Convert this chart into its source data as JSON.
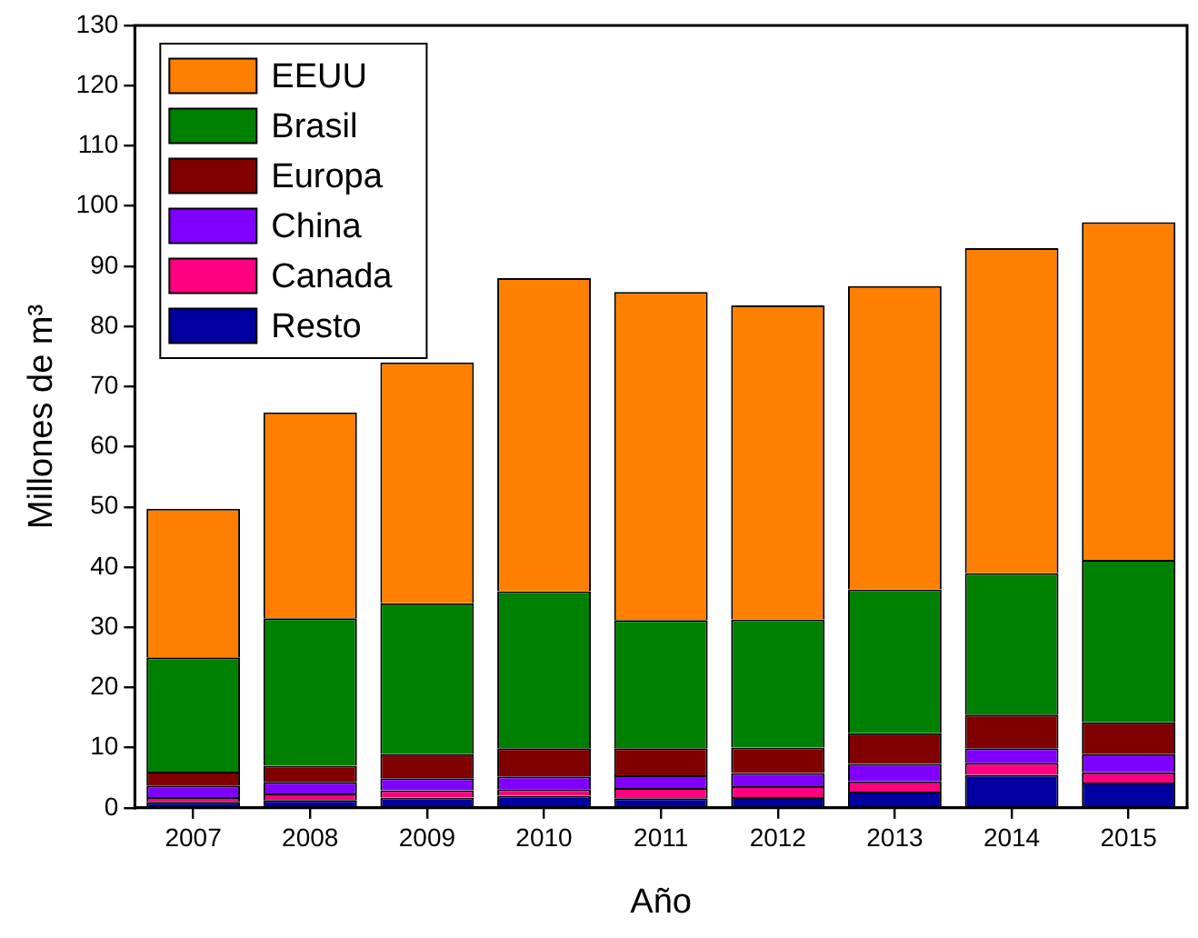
{
  "chart_data": {
    "type": "bar",
    "stacked": true,
    "xlabel": "Año",
    "ylabel": "Millones de m³",
    "categories": [
      "2007",
      "2008",
      "2009",
      "2010",
      "2011",
      "2012",
      "2013",
      "2014",
      "2015"
    ],
    "series": [
      {
        "name": "Resto",
        "color": "#0000a0",
        "values": [
          1.0,
          1.3,
          1.7,
          2.0,
          1.6,
          1.8,
          2.7,
          5.5,
          4.2
        ]
      },
      {
        "name": "Canada",
        "color": "#ff0080",
        "values": [
          0.8,
          1.1,
          1.2,
          1.1,
          1.7,
          1.8,
          1.7,
          2.0,
          1.7
        ]
      },
      {
        "name": "China",
        "color": "#8000ff",
        "values": [
          1.9,
          1.9,
          2.0,
          2.1,
          2.1,
          2.2,
          2.9,
          2.4,
          3.0
        ]
      },
      {
        "name": "Europa",
        "color": "#800000",
        "values": [
          2.3,
          2.7,
          4.0,
          4.7,
          4.5,
          4.2,
          5.1,
          5.6,
          5.3
        ]
      },
      {
        "name": "Brasil",
        "color": "#008000",
        "values": [
          19.0,
          24.5,
          25.1,
          26.1,
          21.3,
          21.3,
          23.9,
          23.5,
          27.0
        ]
      },
      {
        "name": "EEUU",
        "color": "#ff8000",
        "values": [
          24.7,
          34.2,
          40.0,
          52.0,
          54.5,
          52.2,
          50.4,
          54.0,
          56.1
        ]
      }
    ],
    "ylim": [
      0,
      130
    ],
    "yticks": [
      0,
      10,
      20,
      30,
      40,
      50,
      60,
      70,
      80,
      90,
      100,
      110,
      120,
      130
    ],
    "grid": false,
    "legend": "top left"
  }
}
